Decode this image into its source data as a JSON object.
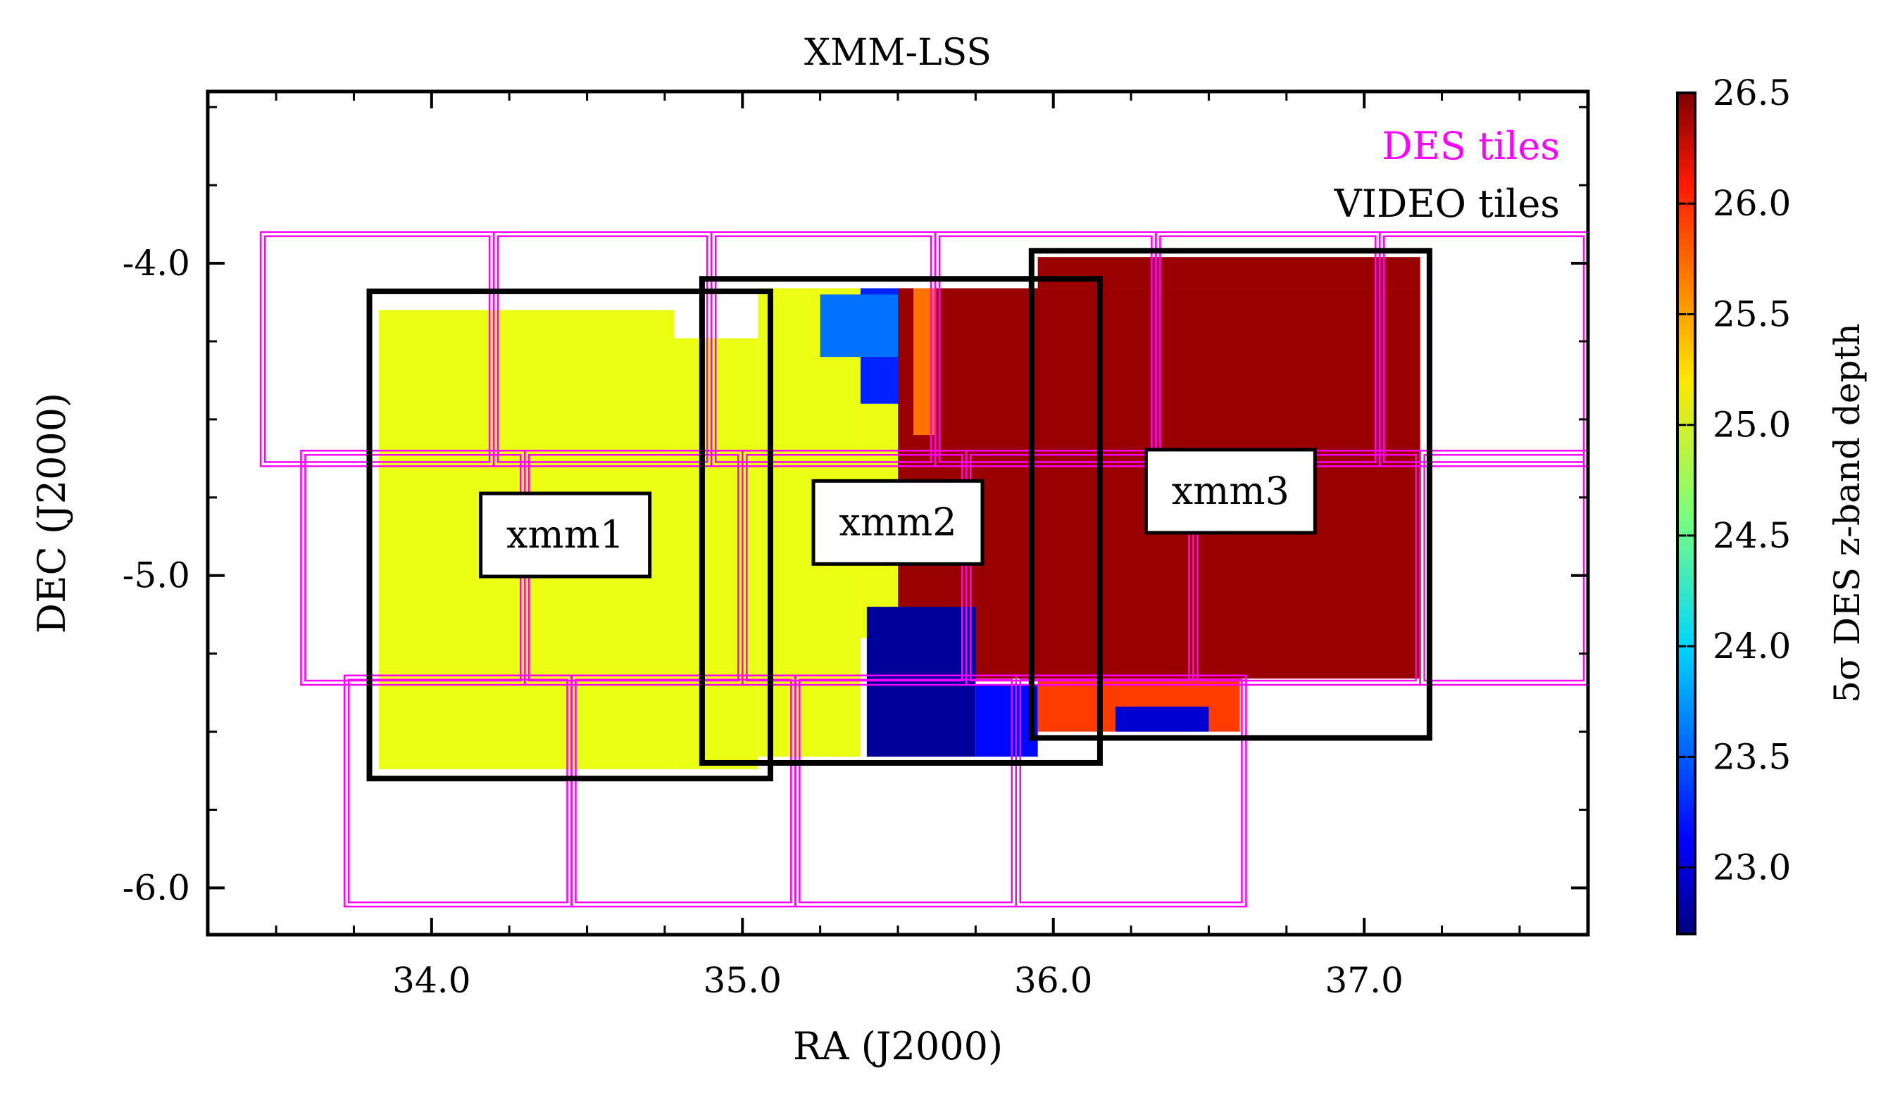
{
  "chart_data": {
    "type": "heatmap",
    "title": "XMM-LSS",
    "xlabel": "RA (J2000)",
    "ylabel": "DEC (J2000)",
    "xlim": [
      33.28,
      37.72
    ],
    "ylim": [
      -6.15,
      -3.45
    ],
    "x_axis_inverted": false,
    "x_ticks": [
      {
        "value": 34.0,
        "label": "34.0"
      },
      {
        "value": 35.0,
        "label": "35.0"
      },
      {
        "value": 36.0,
        "label": "36.0"
      },
      {
        "value": 37.0,
        "label": "37.0"
      }
    ],
    "y_ticks": [
      {
        "value": -4.0,
        "label": "-4.0"
      },
      {
        "value": -5.0,
        "label": "-5.0"
      },
      {
        "value": -6.0,
        "label": "-6.0"
      }
    ],
    "legend": {
      "position": "top-right",
      "entries": [
        {
          "label": "DES tiles",
          "color": "#ff00ff"
        },
        {
          "label": "VIDEO tiles",
          "color": "#000000"
        }
      ]
    },
    "colorbar": {
      "label": "5σ DES z-band depth",
      "min": 22.7,
      "max": 26.5,
      "colormap": "jet",
      "ticks": [
        {
          "value": 23.0,
          "label": "23.0"
        },
        {
          "value": 23.5,
          "label": "23.5"
        },
        {
          "value": 24.0,
          "label": "24.0"
        },
        {
          "value": 24.5,
          "label": "24.5"
        },
        {
          "value": 25.0,
          "label": "25.0"
        },
        {
          "value": 25.5,
          "label": "25.5"
        },
        {
          "value": 26.0,
          "label": "26.0"
        },
        {
          "value": 26.5,
          "label": "26.5"
        }
      ]
    },
    "depth_regions": [
      {
        "ra": [
          33.83,
          34.78
        ],
        "dec": [
          -5.62,
          -4.15
        ],
        "depth": 25.0
      },
      {
        "ra": [
          34.78,
          35.05
        ],
        "dec": [
          -5.62,
          -4.24
        ],
        "depth": 25.0
      },
      {
        "ra": [
          35.05,
          35.38
        ],
        "dec": [
          -5.58,
          -4.08
        ],
        "depth": 25.0
      },
      {
        "ra": [
          35.38,
          35.55
        ],
        "dec": [
          -5.2,
          -4.45
        ],
        "depth": 25.0
      },
      {
        "ra": [
          35.38,
          35.55
        ],
        "dec": [
          -4.45,
          -4.08
        ],
        "depth": 23.3
      },
      {
        "ra": [
          35.25,
          35.5
        ],
        "dec": [
          -4.3,
          -4.1
        ],
        "depth": 23.6
      },
      {
        "ra": [
          35.5,
          37.18
        ],
        "dec": [
          -5.33,
          -4.08
        ],
        "depth": 26.4
      },
      {
        "ra": [
          35.95,
          37.18
        ],
        "dec": [
          -4.08,
          -3.98
        ],
        "depth": 26.4
      },
      {
        "ra": [
          35.4,
          35.75
        ],
        "dec": [
          -5.58,
          -5.1
        ],
        "depth": 22.8
      },
      {
        "ra": [
          35.75,
          35.95
        ],
        "dec": [
          -5.58,
          -5.35
        ],
        "depth": 23.2
      },
      {
        "ra": [
          35.55,
          35.62
        ],
        "dec": [
          -4.55,
          -4.08
        ],
        "depth": 25.6
      },
      {
        "ra": [
          35.95,
          36.6
        ],
        "dec": [
          -5.5,
          -5.33
        ],
        "depth": 25.8
      },
      {
        "ra": [
          36.2,
          36.5
        ],
        "dec": [
          -5.5,
          -5.42
        ],
        "depth": 23.0
      }
    ],
    "des_tiles": [
      {
        "ra": [
          33.45,
          34.2
        ],
        "dec": [
          -4.65,
          -3.9
        ]
      },
      {
        "ra": [
          34.2,
          34.9
        ],
        "dec": [
          -4.65,
          -3.9
        ]
      },
      {
        "ra": [
          34.9,
          35.62
        ],
        "dec": [
          -4.65,
          -3.9
        ]
      },
      {
        "ra": [
          35.62,
          36.33
        ],
        "dec": [
          -4.65,
          -3.9
        ]
      },
      {
        "ra": [
          36.33,
          37.05
        ],
        "dec": [
          -4.65,
          -3.9
        ]
      },
      {
        "ra": [
          37.05,
          37.72
        ],
        "dec": [
          -4.65,
          -3.9
        ]
      },
      {
        "ra": [
          33.58,
          34.3
        ],
        "dec": [
          -5.35,
          -4.6
        ]
      },
      {
        "ra": [
          34.3,
          35.0
        ],
        "dec": [
          -5.35,
          -4.6
        ]
      },
      {
        "ra": [
          35.0,
          35.72
        ],
        "dec": [
          -5.35,
          -4.6
        ]
      },
      {
        "ra": [
          35.72,
          36.45
        ],
        "dec": [
          -5.35,
          -4.6
        ]
      },
      {
        "ra": [
          36.45,
          37.18
        ],
        "dec": [
          -5.35,
          -4.6
        ]
      },
      {
        "ra": [
          37.18,
          37.72
        ],
        "dec": [
          -5.35,
          -4.6
        ]
      },
      {
        "ra": [
          33.72,
          34.45
        ],
        "dec": [
          -6.06,
          -5.32
        ]
      },
      {
        "ra": [
          34.45,
          35.17
        ],
        "dec": [
          -6.06,
          -5.32
        ]
      },
      {
        "ra": [
          35.17,
          35.88
        ],
        "dec": [
          -6.06,
          -5.32
        ]
      },
      {
        "ra": [
          35.88,
          36.62
        ],
        "dec": [
          -6.06,
          -5.32
        ]
      }
    ],
    "video_tiles": [
      {
        "name": "xmm1",
        "ra": [
          33.8,
          35.09
        ],
        "dec": [
          -5.65,
          -4.09
        ],
        "label_ra": 34.43,
        "label_dec": -4.87
      },
      {
        "name": "xmm2",
        "ra": [
          34.87,
          36.15
        ],
        "dec": [
          -5.6,
          -4.05
        ],
        "label_ra": 35.5,
        "label_dec": -4.83
      },
      {
        "name": "xmm3",
        "ra": [
          35.93,
          37.21
        ],
        "dec": [
          -5.52,
          -3.96
        ],
        "label_ra": 36.57,
        "label_dec": -4.73
      }
    ]
  }
}
